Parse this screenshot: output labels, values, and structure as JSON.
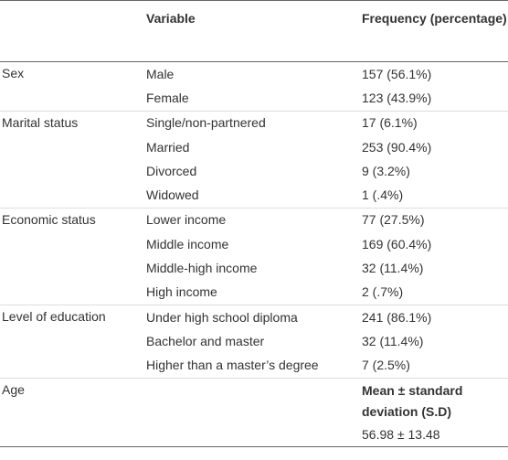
{
  "table": {
    "header": {
      "variable": "Variable",
      "frequency": "Frequency (percentage)"
    },
    "groups": [
      {
        "label": "Sex",
        "rows": [
          [
            "Male",
            "157 (56.1%)"
          ],
          [
            "Female",
            "123 (43.9%)"
          ]
        ]
      },
      {
        "label": "Marital status",
        "rows": [
          [
            "Single/non-partnered",
            "17 (6.1%)"
          ],
          [
            "Married",
            "253 (90.4%)"
          ],
          [
            "Divorced",
            "9 (3.2%)"
          ],
          [
            "Widowed",
            "1 (.4%)"
          ]
        ]
      },
      {
        "label": "Economic status",
        "rows": [
          [
            "Lower income",
            "77 (27.5%)"
          ],
          [
            "Middle income",
            "169 (60.4%)"
          ],
          [
            "Middle-high income",
            "32 (11.4%)"
          ],
          [
            "High income",
            "2 (.7%)"
          ]
        ]
      },
      {
        "label": "Level of education",
        "rows": [
          [
            "Under high school diploma",
            "241 (86.1%)"
          ],
          [
            "Bachelor and master",
            "32 (11.4%)"
          ],
          [
            "Higher than a master’s degree",
            "7 (2.5%)"
          ]
        ]
      }
    ],
    "age": {
      "label": "Age",
      "stat_header": "Mean ± standard deviation (S.D)",
      "value": "56.98 ± 13.48"
    }
  }
}
